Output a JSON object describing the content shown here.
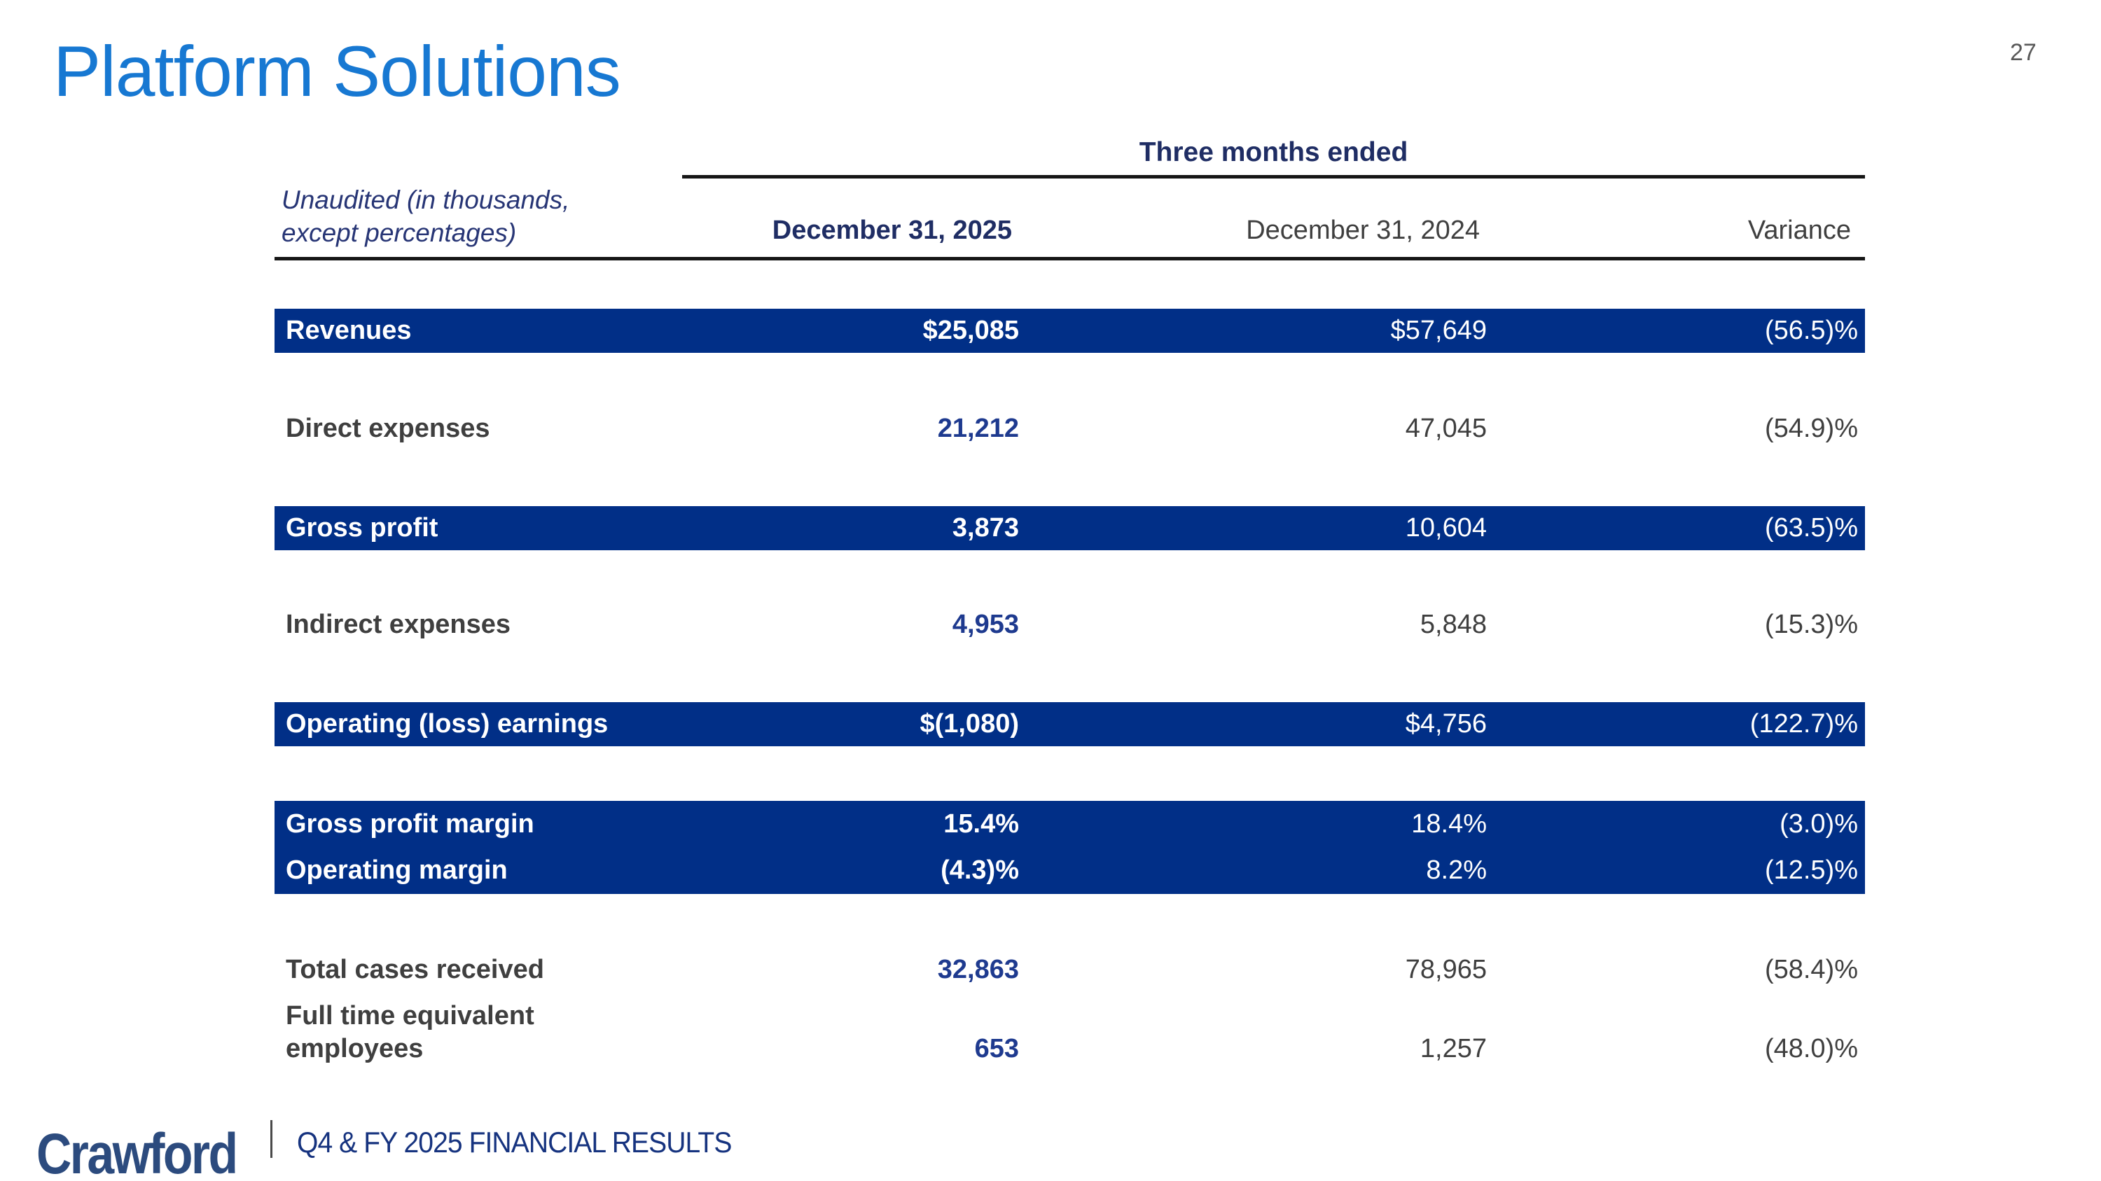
{
  "page": {
    "number": "27",
    "title": "Platform Solutions"
  },
  "table": {
    "note_line1": "Unaudited (in thousands,",
    "note_line2": "except percentages)",
    "group_header": "Three months ended",
    "columns": [
      "December 31, 2025",
      "December 31, 2024",
      "Variance"
    ],
    "rows": [
      {
        "label": "Revenues",
        "y2025": "$25,085",
        "y2024": "$57,649",
        "var": "(56.5)%"
      },
      {
        "label": "Direct expenses",
        "y2025": "21,212",
        "y2024": "47,045",
        "var": "(54.9)%"
      },
      {
        "label": "Gross profit",
        "y2025": "3,873",
        "y2024": "10,604",
        "var": "(63.5)%"
      },
      {
        "label": "Indirect expenses",
        "y2025": "4,953",
        "y2024": "5,848",
        "var": "(15.3)%"
      },
      {
        "label": "Operating (loss) earnings",
        "y2025": "$(1,080)",
        "y2024": "$4,756",
        "var": "(122.7)%"
      },
      {
        "label": "Gross profit margin",
        "y2025": "15.4%",
        "y2024": "18.4%",
        "var": "(3.0)%"
      },
      {
        "label": "Operating margin",
        "y2025": "(4.3)%",
        "y2024": "8.2%",
        "var": "(12.5)%"
      },
      {
        "label": "Total cases received",
        "y2025": "32,863",
        "y2024": "78,965",
        "var": "(58.4)%"
      },
      {
        "label_line1": "Full time equivalent",
        "label_line2": "employees",
        "y2025": "653",
        "y2024": "1,257",
        "var": "(48.0)%"
      }
    ]
  },
  "footer": {
    "logo": "Crawford",
    "caption": "Q4 & FY 2025 FINANCIAL RESULTS"
  },
  "colors": {
    "title_blue": "#1778D2",
    "bar_navy": "#012F87",
    "header_navy": "#1F2D64",
    "value_navy": "#1E3A8F",
    "text_gray": "#3F3F3F",
    "footer_navy": "#16337F",
    "logo_navy": "#2C4B7E",
    "page_number_gray": "#595959"
  }
}
